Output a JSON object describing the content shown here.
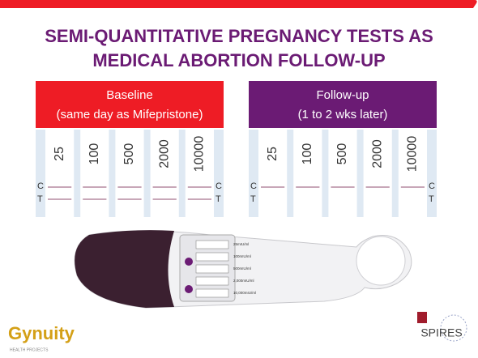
{
  "title": {
    "line1": "SEMI-QUANTITATIVE PREGNANCY TESTS AS",
    "line2": "MEDICAL ABORTION FOLLOW-UP"
  },
  "panels": [
    {
      "heading": "Baseline",
      "subheading": "(same day as Mifepristone)",
      "strips": [
        "25",
        "100",
        "500",
        "2000",
        "10000"
      ],
      "control_label": "C",
      "test_label": "T"
    },
    {
      "heading": "Follow-up",
      "subheading": "(1 to 2 wks later)",
      "strips": [
        "25",
        "100",
        "500",
        "2000",
        "10000"
      ],
      "control_label": "C",
      "test_label": "T"
    }
  ],
  "device": {
    "levels": [
      "25mIU/ml",
      "100mIU/ml",
      "500mIU/ml",
      "2,000mIU/ml",
      "10,000mIU/ml"
    ]
  },
  "logos": {
    "left": "Gynuity",
    "left_sub": "HEALTH PROJECTS",
    "right": "SPIRES"
  }
}
